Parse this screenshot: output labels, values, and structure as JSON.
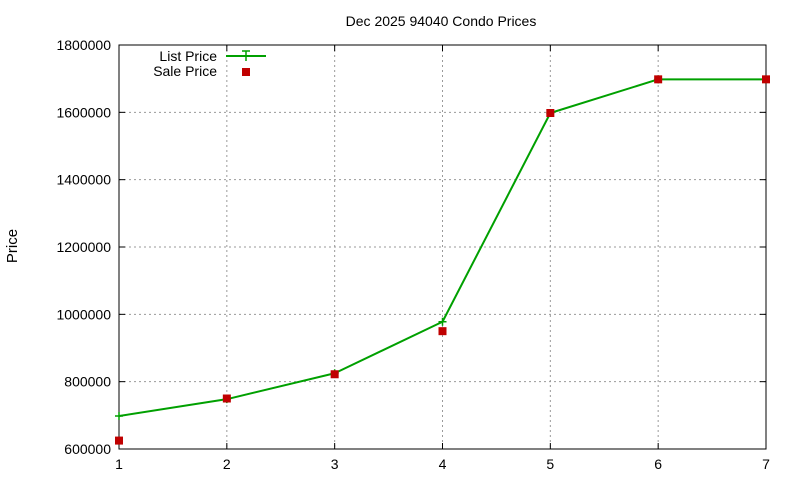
{
  "chart_data": {
    "type": "line",
    "title": "Dec 2025 94040 Condo Prices",
    "xlabel": "",
    "ylabel": "Price",
    "x": [
      1,
      2,
      3,
      4,
      5,
      6,
      7
    ],
    "xlim": [
      1,
      7
    ],
    "ylim": [
      600000,
      1800000
    ],
    "xticks": [
      "1",
      "2",
      "3",
      "4",
      "5",
      "6",
      "7"
    ],
    "yticks": [
      "600000",
      "800000",
      "1000000",
      "1200000",
      "1400000",
      "1600000",
      "1800000"
    ],
    "grid": true,
    "legend_position": "top-left",
    "series": [
      {
        "name": "List Price",
        "style": "line-plus",
        "color": "#00a000",
        "values": [
          698000,
          748000,
          825000,
          978000,
          1598000,
          1698000,
          1698000
        ]
      },
      {
        "name": "Sale Price",
        "style": "square-points",
        "color": "#c00000",
        "values": [
          625000,
          750000,
          822000,
          950000,
          1598000,
          1698000,
          1698000
        ]
      }
    ]
  }
}
